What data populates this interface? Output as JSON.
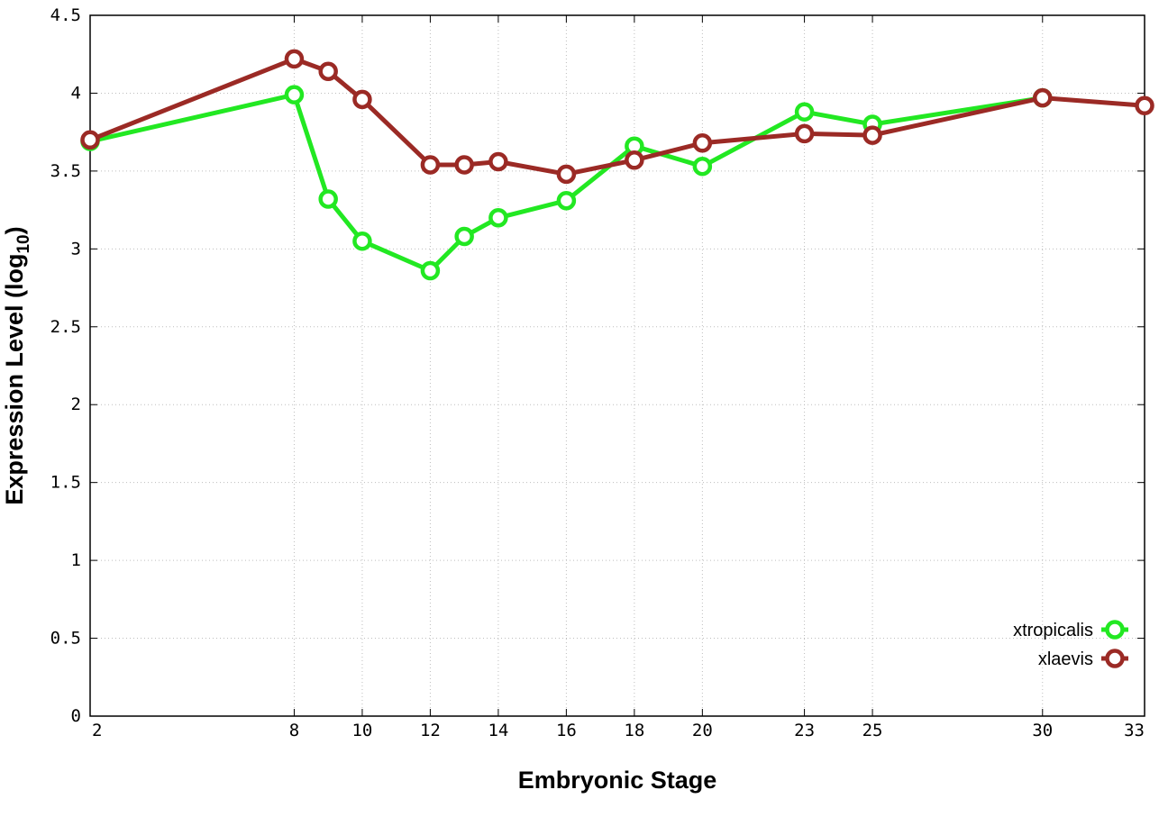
{
  "chart_data": {
    "type": "line",
    "xlabel": "Embryonic Stage",
    "ylabel": "Expression Level (log",
    "ylabel_subscript": "10",
    "ylabel_close": ")",
    "xlim": [
      2,
      33
    ],
    "ylim": [
      0,
      4.5
    ],
    "x_ticks": [
      2,
      8,
      10,
      12,
      14,
      16,
      18,
      20,
      23,
      25,
      30,
      33
    ],
    "y_ticks": [
      0,
      0.5,
      1,
      1.5,
      2,
      2.5,
      3,
      3.5,
      4,
      4.5
    ],
    "y_tick_labels": [
      "0",
      "0.5",
      "1",
      "1.5",
      "2",
      "2.5",
      "3",
      "3.5",
      "4",
      "4.5"
    ],
    "grid": true,
    "legend_position": "bottom-right",
    "series": [
      {
        "name": "xtropicalis",
        "color": "#22e822",
        "marker": "open-circle",
        "x": [
          2,
          8,
          9,
          10,
          12,
          13,
          14,
          16,
          18,
          20,
          23,
          25,
          30
        ],
        "y": [
          3.69,
          3.99,
          3.32,
          3.05,
          2.86,
          3.08,
          3.2,
          3.31,
          3.66,
          3.53,
          3.88,
          3.8,
          3.97
        ]
      },
      {
        "name": "xlaevis",
        "color": "#9b2a25",
        "marker": "open-circle",
        "x": [
          2,
          8,
          9,
          10,
          12,
          13,
          14,
          16,
          18,
          20,
          23,
          25,
          30,
          33
        ],
        "y": [
          3.7,
          4.22,
          4.14,
          3.96,
          3.54,
          3.54,
          3.56,
          3.48,
          3.57,
          3.68,
          3.74,
          3.73,
          3.97,
          3.92
        ]
      }
    ]
  }
}
